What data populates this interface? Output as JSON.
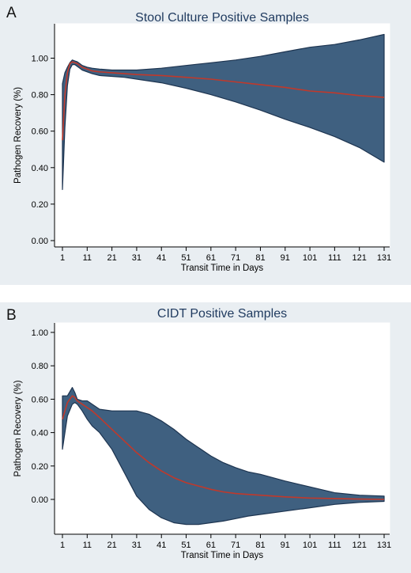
{
  "panels": [
    {
      "letter": "A",
      "chart_data": {
        "type": "area",
        "title": "Stool Culture Positive Samples",
        "xlabel": "Transit Time in Days",
        "ylabel": "Pathogen Recovery (%)",
        "xticks": [
          1,
          11,
          21,
          31,
          41,
          51,
          61,
          71,
          81,
          91,
          101,
          111,
          121,
          131
        ],
        "yticks": [
          "0.00",
          "0.20",
          "0.40",
          "0.60",
          "0.80",
          "1.00"
        ],
        "xlim": [
          1,
          131
        ],
        "ylim": [
          0,
          1.0
        ],
        "band_color": "#3f6080",
        "line_color": "#c0392b",
        "x": [
          1,
          2,
          3,
          4,
          5,
          6,
          7,
          8,
          9,
          11,
          13,
          16,
          21,
          26,
          31,
          41,
          51,
          61,
          71,
          81,
          91,
          101,
          111,
          121,
          131
        ],
        "estimate": [
          0.55,
          0.8,
          0.92,
          0.97,
          0.98,
          0.975,
          0.97,
          0.96,
          0.95,
          0.94,
          0.93,
          0.925,
          0.92,
          0.915,
          0.91,
          0.905,
          0.895,
          0.885,
          0.87,
          0.855,
          0.84,
          0.82,
          0.81,
          0.795,
          0.785
        ],
        "upper": [
          0.86,
          0.92,
          0.95,
          0.975,
          0.99,
          0.985,
          0.98,
          0.97,
          0.96,
          0.95,
          0.945,
          0.94,
          0.935,
          0.935,
          0.935,
          0.945,
          0.96,
          0.975,
          0.99,
          1.01,
          1.035,
          1.06,
          1.075,
          1.1,
          1.13
        ],
        "lower": [
          0.28,
          0.62,
          0.85,
          0.94,
          0.965,
          0.965,
          0.955,
          0.945,
          0.935,
          0.925,
          0.915,
          0.905,
          0.9,
          0.895,
          0.885,
          0.865,
          0.835,
          0.8,
          0.76,
          0.715,
          0.665,
          0.62,
          0.57,
          0.51,
          0.43
        ]
      }
    },
    {
      "letter": "B",
      "chart_data": {
        "type": "area",
        "title": "CIDT Positive Samples",
        "xlabel": "Transit Time in Days",
        "ylabel": "Pathogen Recovery (%)",
        "xticks": [
          1,
          11,
          21,
          31,
          41,
          51,
          61,
          71,
          81,
          91,
          101,
          111,
          121,
          131
        ],
        "yticks": [
          "0.00",
          "0.20",
          "0.40",
          "0.60",
          "0.80",
          "1.00"
        ],
        "xlim": [
          1,
          131
        ],
        "ylim": [
          -0.15,
          1.0
        ],
        "band_color": "#3f6080",
        "line_color": "#c0392b",
        "x": [
          1,
          3,
          5,
          6,
          7,
          9,
          11,
          13,
          16,
          21,
          26,
          31,
          36,
          41,
          46,
          51,
          56,
          61,
          66,
          71,
          76,
          81,
          91,
          101,
          111,
          121,
          131
        ],
        "estimate": [
          0.48,
          0.58,
          0.62,
          0.61,
          0.59,
          0.57,
          0.55,
          0.53,
          0.49,
          0.42,
          0.35,
          0.28,
          0.22,
          0.17,
          0.13,
          0.1,
          0.08,
          0.06,
          0.045,
          0.035,
          0.03,
          0.025,
          0.015,
          0.008,
          0.005,
          0.002,
          0.0
        ],
        "upper": [
          0.62,
          0.62,
          0.67,
          0.64,
          0.6,
          0.59,
          0.59,
          0.57,
          0.54,
          0.53,
          0.53,
          0.53,
          0.51,
          0.47,
          0.42,
          0.36,
          0.31,
          0.26,
          0.22,
          0.19,
          0.165,
          0.15,
          0.11,
          0.075,
          0.04,
          0.025,
          0.02
        ],
        "lower": [
          0.3,
          0.5,
          0.57,
          0.58,
          0.57,
          0.53,
          0.48,
          0.44,
          0.4,
          0.3,
          0.16,
          0.02,
          -0.06,
          -0.11,
          -0.14,
          -0.15,
          -0.15,
          -0.14,
          -0.13,
          -0.115,
          -0.1,
          -0.09,
          -0.07,
          -0.05,
          -0.03,
          -0.018,
          -0.012
        ]
      }
    }
  ]
}
